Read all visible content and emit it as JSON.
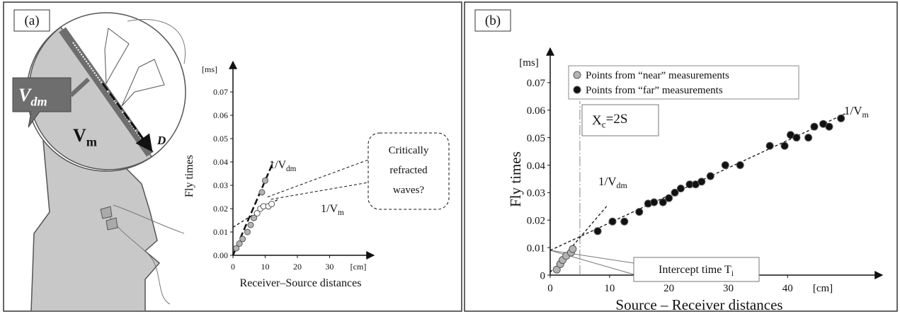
{
  "chart_data": [
    {
      "type": "scatter",
      "panel_label": "(a)",
      "illustration": {
        "v_dm": {
          "text": "V",
          "sub": "dm"
        },
        "v_m": {
          "text": "V",
          "sub": "m"
        },
        "d": "D"
      },
      "xlabel": "Receiver–Source distances",
      "ylabel": "Fly times",
      "x_unit": "[cm]",
      "y_unit": "[ms]",
      "xlim": [
        0,
        42
      ],
      "ylim": [
        0,
        0.08
      ],
      "xticks": [
        0,
        10,
        20,
        30
      ],
      "yticks": [
        {
          "value": 0,
          "label": "0.00"
        },
        0.01,
        0.02,
        0.03,
        0.04,
        0.05,
        0.06,
        0.07
      ],
      "series": [
        {
          "color": "#b4b4b4",
          "x": [
            1,
            2,
            3,
            4.5,
            5.5,
            6.5,
            9,
            10
          ],
          "values": [
            0.003,
            0.005,
            0.007,
            0.01,
            0.013,
            0.016,
            0.027,
            0.032
          ]
        },
        {
          "color": "#ffffff",
          "x": [
            7.5,
            8.5,
            9.5,
            11,
            12
          ],
          "values": [
            0.018,
            0.02,
            0.021,
            0.021,
            0.022
          ]
        }
      ],
      "fit_lines": [
        {
          "label": {
            "text": "1/V",
            "sub": "dm"
          },
          "x": [
            0,
            12.5
          ],
          "values": [
            0,
            0.04
          ]
        },
        {
          "label": {
            "text": "1/V",
            "sub": "m"
          },
          "x": [
            0,
            14
          ],
          "values": [
            0.012,
            0.024
          ]
        }
      ],
      "callout": [
        "Critically",
        "refracted",
        "waves?"
      ]
    },
    {
      "type": "scatter",
      "panel_label": "(b)",
      "xlabel": "Source – Receiver distances",
      "ylabel": "Fly times",
      "x_unit": "[cm]",
      "y_unit": "[ms]",
      "xlim": [
        0,
        55
      ],
      "ylim": [
        0,
        0.08
      ],
      "xticks": [
        0,
        10,
        20,
        30,
        40
      ],
      "yticks": [
        0,
        0.01,
        0.02,
        0.03,
        0.04,
        0.05,
        0.06,
        0.07
      ],
      "legend": "upper left",
      "series": [
        {
          "name": "Points from “near” measurements",
          "color": "#b4b4b4",
          "x": [
            1.1,
            1.7,
            2.1,
            2.7,
            3.5,
            3.8
          ],
          "values": [
            0.002,
            0.004,
            0.0055,
            0.007,
            0.0082,
            0.0095
          ]
        },
        {
          "name": "Points from “far” measurements",
          "color": "#111111",
          "x": [
            8,
            10.5,
            12.5,
            15,
            16.5,
            17.5,
            19,
            20,
            21,
            22,
            23.5,
            24.5,
            25.5,
            27,
            29.5,
            32,
            37,
            39.5,
            40.5,
            41.5,
            43.5,
            44.5,
            46,
            47,
            49
          ],
          "values": [
            0.016,
            0.0195,
            0.0195,
            0.023,
            0.026,
            0.0265,
            0.0265,
            0.028,
            0.03,
            0.0315,
            0.033,
            0.033,
            0.034,
            0.036,
            0.04,
            0.04,
            0.047,
            0.047,
            0.051,
            0.05,
            0.05,
            0.054,
            0.055,
            0.054,
            0.057
          ]
        }
      ],
      "fit_lines": [
        {
          "label": {
            "text": "1/V",
            "sub": "dm"
          },
          "x": [
            0,
            9.5
          ],
          "values": [
            0.001,
            0.025
          ]
        },
        {
          "label": {
            "text": "1/V",
            "sub": "m"
          },
          "x": [
            0,
            50
          ],
          "values": [
            0.009,
            0.059
          ]
        }
      ],
      "crossover": {
        "label": {
          "text": "X",
          "sub": "c",
          "after": "=2S"
        },
        "x": 5
      },
      "intercept": {
        "label": {
          "text": "Intercept time T",
          "sub": "i"
        },
        "value": 0.009
      }
    }
  ]
}
